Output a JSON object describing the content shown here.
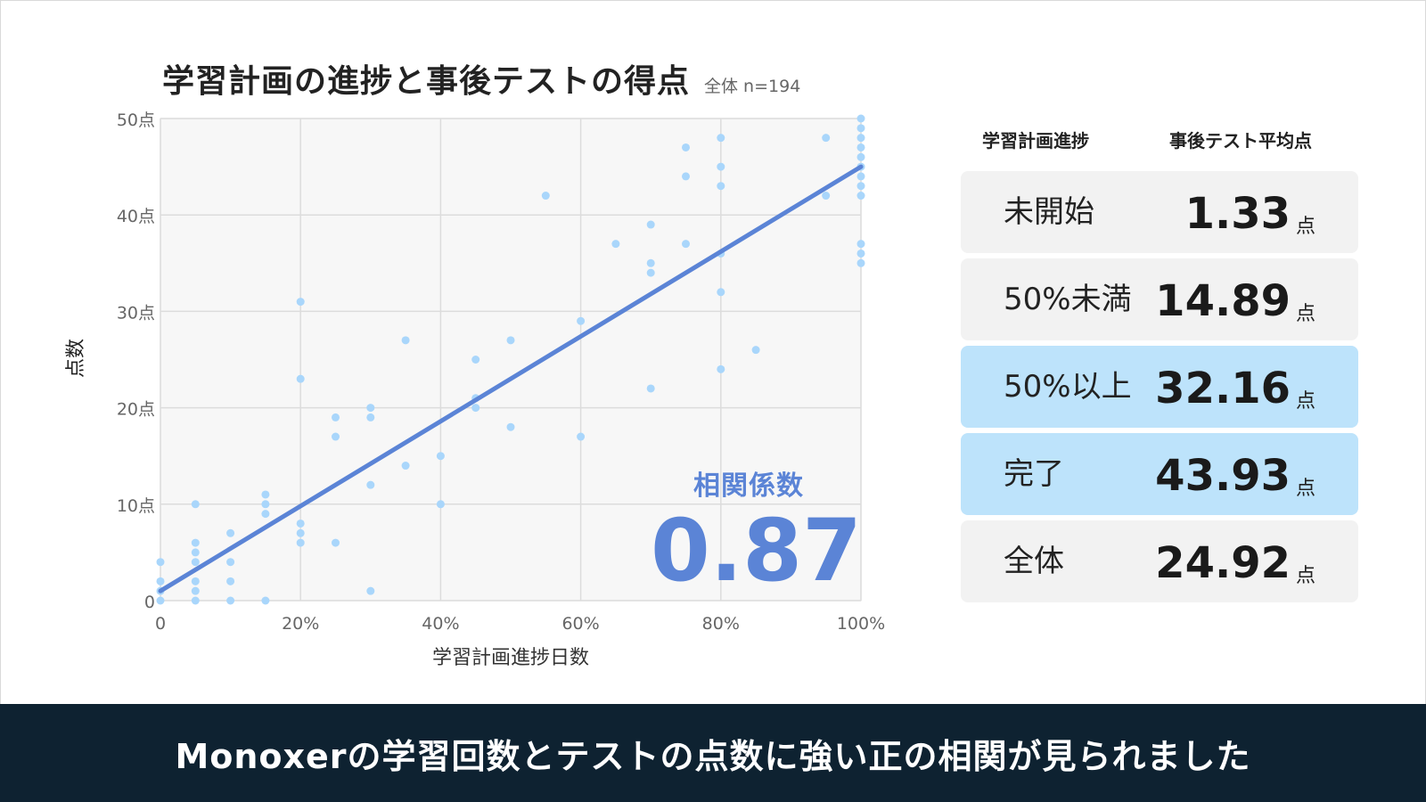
{
  "title": "学習計画の進捗と事後テストの得点",
  "subtitle": "全体 n=194",
  "correlation": {
    "label": "相関係数",
    "value": "0.87"
  },
  "table": {
    "header_left": "学習計画進捗",
    "header_right": "事後テスト平均点",
    "unit": "点",
    "rows": [
      {
        "label": "未開始",
        "value": "1.33",
        "highlight": false
      },
      {
        "label": "50%未満",
        "value": "14.89",
        "highlight": false
      },
      {
        "label": "50%以上",
        "value": "32.16",
        "highlight": true
      },
      {
        "label": "完了",
        "value": "43.93",
        "highlight": true
      },
      {
        "label": "全体",
        "value": "24.92",
        "highlight": false
      }
    ]
  },
  "banner": "Monoxerの学習回数とテストの点数に強い正の相関が見られました",
  "colors": {
    "point": "#a9d6fb",
    "trend": "#5b84d6",
    "highlight_row": "#bde3fb",
    "row": "#f2f2f2",
    "banner_bg": "#0e2231"
  },
  "chart_data": {
    "type": "scatter",
    "xlabel": "学習計画進捗日数",
    "ylabel": "点数",
    "xlim": [
      0,
      100
    ],
    "ylim": [
      0,
      50
    ],
    "xticks": [
      0,
      20,
      40,
      60,
      80,
      100
    ],
    "xtick_labels": [
      "0",
      "20%",
      "40%",
      "60%",
      "80%",
      "100%"
    ],
    "yticks": [
      0,
      10,
      20,
      30,
      40,
      50
    ],
    "ytick_labels": [
      "0",
      "10点",
      "20点",
      "30点",
      "40点",
      "50点"
    ],
    "grid": true,
    "trendline": {
      "x": [
        0,
        100
      ],
      "y": [
        1,
        45
      ]
    },
    "points": [
      {
        "x": 0,
        "y": 4
      },
      {
        "x": 0,
        "y": 2
      },
      {
        "x": 0,
        "y": 1
      },
      {
        "x": 0,
        "y": 0
      },
      {
        "x": 5,
        "y": 10
      },
      {
        "x": 5,
        "y": 6
      },
      {
        "x": 5,
        "y": 5
      },
      {
        "x": 5,
        "y": 4
      },
      {
        "x": 5,
        "y": 2
      },
      {
        "x": 5,
        "y": 1
      },
      {
        "x": 5,
        "y": 0
      },
      {
        "x": 10,
        "y": 7
      },
      {
        "x": 10,
        "y": 4
      },
      {
        "x": 10,
        "y": 2
      },
      {
        "x": 10,
        "y": 0
      },
      {
        "x": 15,
        "y": 11
      },
      {
        "x": 15,
        "y": 10
      },
      {
        "x": 15,
        "y": 9
      },
      {
        "x": 15,
        "y": 0
      },
      {
        "x": 20,
        "y": 31
      },
      {
        "x": 20,
        "y": 23
      },
      {
        "x": 20,
        "y": 8
      },
      {
        "x": 20,
        "y": 7
      },
      {
        "x": 20,
        "y": 6
      },
      {
        "x": 25,
        "y": 19
      },
      {
        "x": 25,
        "y": 17
      },
      {
        "x": 25,
        "y": 6
      },
      {
        "x": 30,
        "y": 20
      },
      {
        "x": 30,
        "y": 19
      },
      {
        "x": 30,
        "y": 12
      },
      {
        "x": 30,
        "y": 1
      },
      {
        "x": 35,
        "y": 27
      },
      {
        "x": 35,
        "y": 14
      },
      {
        "x": 40,
        "y": 15
      },
      {
        "x": 40,
        "y": 10
      },
      {
        "x": 45,
        "y": 25
      },
      {
        "x": 45,
        "y": 21
      },
      {
        "x": 45,
        "y": 20
      },
      {
        "x": 50,
        "y": 27
      },
      {
        "x": 50,
        "y": 18
      },
      {
        "x": 55,
        "y": 42
      },
      {
        "x": 60,
        "y": 29
      },
      {
        "x": 60,
        "y": 17
      },
      {
        "x": 65,
        "y": 37
      },
      {
        "x": 70,
        "y": 39
      },
      {
        "x": 70,
        "y": 35
      },
      {
        "x": 70,
        "y": 34
      },
      {
        "x": 70,
        "y": 22
      },
      {
        "x": 75,
        "y": 47
      },
      {
        "x": 75,
        "y": 44
      },
      {
        "x": 75,
        "y": 37
      },
      {
        "x": 80,
        "y": 48
      },
      {
        "x": 80,
        "y": 45
      },
      {
        "x": 80,
        "y": 43
      },
      {
        "x": 80,
        "y": 36
      },
      {
        "x": 80,
        "y": 32
      },
      {
        "x": 80,
        "y": 24
      },
      {
        "x": 85,
        "y": 26
      },
      {
        "x": 95,
        "y": 48
      },
      {
        "x": 95,
        "y": 42
      },
      {
        "x": 100,
        "y": 50
      },
      {
        "x": 100,
        "y": 49
      },
      {
        "x": 100,
        "y": 48
      },
      {
        "x": 100,
        "y": 47
      },
      {
        "x": 100,
        "y": 46
      },
      {
        "x": 100,
        "y": 45
      },
      {
        "x": 100,
        "y": 44
      },
      {
        "x": 100,
        "y": 43
      },
      {
        "x": 100,
        "y": 42
      },
      {
        "x": 100,
        "y": 37
      },
      {
        "x": 100,
        "y": 36
      },
      {
        "x": 100,
        "y": 35
      }
    ]
  }
}
